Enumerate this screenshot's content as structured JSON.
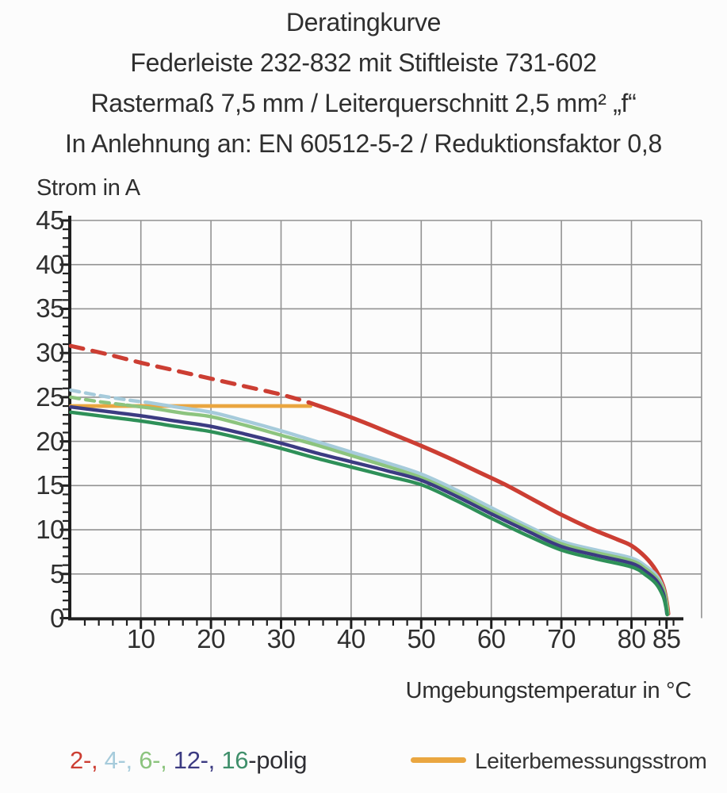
{
  "title_block": {
    "line1": "Deratingkurve",
    "line2": "Federleiste 232-832 mit Stiftleiste 731-602",
    "line3": "Rastermaß 7,5 mm / Leiterquerschnitt 2,5 mm² „f“",
    "line4": "In Anlehnung an: EN 60512-5-2 / Reduktionsfaktor 0,8"
  },
  "chart_data": {
    "type": "line",
    "title": "Deratingkurve",
    "ylabel": "Strom in A",
    "xlabel": "Umgebungstemperatur in °C",
    "xlim": [
      0,
      90
    ],
    "ylim": [
      0,
      45
    ],
    "x_major_ticks": [
      10,
      20,
      30,
      40,
      50,
      60,
      70,
      80,
      85
    ],
    "x_minor_step": 2,
    "y_major_ticks": [
      0,
      5,
      10,
      15,
      20,
      25,
      30,
      35,
      40,
      45
    ],
    "y_minor_step": 1,
    "grid": {
      "x_step": 10,
      "y_step": 5,
      "color": "#929292",
      "width": 1.6
    },
    "axis_color": "#1f1f1f",
    "series": [
      {
        "name": "Leiterbemessungsstrom",
        "color": "#eaa640",
        "width": 4.8,
        "solid": [
          [
            0,
            24.0
          ],
          [
            34.2,
            24.0
          ]
        ]
      },
      {
        "name": "2-polig",
        "color": "#cc3e33",
        "width": 5.2,
        "dash_pattern": "16 12",
        "dashed": [
          [
            0,
            30.8
          ],
          [
            5,
            29.9
          ],
          [
            10,
            28.9
          ],
          [
            15,
            28.0
          ],
          [
            20,
            27.1
          ],
          [
            25,
            26.2
          ],
          [
            30,
            25.3
          ],
          [
            34,
            24.4
          ]
        ],
        "solid": [
          [
            34,
            24.4
          ],
          [
            38,
            23.3
          ],
          [
            42,
            22.1
          ],
          [
            46,
            20.8
          ],
          [
            50,
            19.5
          ],
          [
            54,
            18.1
          ],
          [
            58,
            16.6
          ],
          [
            62,
            15.1
          ],
          [
            66,
            13.4
          ],
          [
            70,
            11.7
          ],
          [
            74,
            10.2
          ],
          [
            78,
            8.9
          ],
          [
            80,
            8.2
          ],
          [
            82,
            6.9
          ],
          [
            83.5,
            5.4
          ],
          [
            84.5,
            3.7
          ],
          [
            84.9,
            2.4
          ],
          [
            85.15,
            1.2
          ],
          [
            85.25,
            0.5
          ]
        ]
      },
      {
        "name": "4-polig",
        "color": "#a6cbdb",
        "width": 4.4,
        "dash_pattern": "11 8",
        "dashed": [
          [
            0,
            25.8
          ],
          [
            4,
            25.2
          ],
          [
            8,
            24.7
          ],
          [
            11,
            24.4
          ]
        ],
        "solid": [
          [
            11,
            24.4
          ],
          [
            15,
            23.9
          ],
          [
            20,
            23.3
          ],
          [
            25,
            22.3
          ],
          [
            30,
            21.2
          ],
          [
            35,
            20.0
          ],
          [
            40,
            18.8
          ],
          [
            45,
            17.6
          ],
          [
            50,
            16.3
          ],
          [
            55,
            14.5
          ],
          [
            60,
            12.5
          ],
          [
            65,
            10.5
          ],
          [
            70,
            8.7
          ],
          [
            75,
            7.7
          ],
          [
            80,
            6.8
          ],
          [
            82,
            5.9
          ],
          [
            83.5,
            4.9
          ],
          [
            84.5,
            3.5
          ],
          [
            84.9,
            2.1
          ],
          [
            85.05,
            1.0
          ],
          [
            85.1,
            0.5
          ]
        ]
      },
      {
        "name": "6-polig",
        "color": "#8cc47e",
        "width": 4.4,
        "dash_pattern": "11 8",
        "dashed": [
          [
            0,
            25.0
          ],
          [
            4,
            24.5
          ],
          [
            8,
            24.1
          ]
        ],
        "solid": [
          [
            8,
            24.1
          ],
          [
            12,
            23.7
          ],
          [
            16,
            23.2
          ],
          [
            20,
            22.8
          ],
          [
            25,
            21.8
          ],
          [
            30,
            20.7
          ],
          [
            35,
            19.6
          ],
          [
            40,
            18.4
          ],
          [
            45,
            17.2
          ],
          [
            50,
            15.9
          ],
          [
            55,
            14.1
          ],
          [
            60,
            12.1
          ],
          [
            65,
            10.2
          ],
          [
            70,
            8.4
          ],
          [
            75,
            7.4
          ],
          [
            80,
            6.5
          ],
          [
            82,
            5.6
          ],
          [
            83.5,
            4.6
          ],
          [
            84.6,
            3.2
          ],
          [
            85,
            1.8
          ],
          [
            85.15,
            0.9
          ],
          [
            85.2,
            0.5
          ]
        ]
      },
      {
        "name": "12-polig",
        "color": "#3c3b82",
        "width": 4.4,
        "solid": [
          [
            0,
            23.9
          ],
          [
            5,
            23.4
          ],
          [
            10,
            22.9
          ],
          [
            15,
            22.3
          ],
          [
            20,
            21.7
          ],
          [
            25,
            20.8
          ],
          [
            30,
            19.8
          ],
          [
            35,
            18.7
          ],
          [
            40,
            17.7
          ],
          [
            45,
            16.7
          ],
          [
            50,
            15.6
          ],
          [
            55,
            13.8
          ],
          [
            60,
            11.8
          ],
          [
            65,
            9.9
          ],
          [
            70,
            8.1
          ],
          [
            75,
            7.1
          ],
          [
            80,
            6.2
          ],
          [
            82,
            5.3
          ],
          [
            83.5,
            4.3
          ],
          [
            84.5,
            2.9
          ],
          [
            84.85,
            1.6
          ],
          [
            85,
            0.8
          ],
          [
            85.05,
            0.5
          ]
        ]
      },
      {
        "name": "16-polig",
        "color": "#2e9058",
        "width": 4.4,
        "solid": [
          [
            0,
            23.3
          ],
          [
            5,
            22.8
          ],
          [
            10,
            22.3
          ],
          [
            15,
            21.7
          ],
          [
            20,
            21.1
          ],
          [
            25,
            20.2
          ],
          [
            30,
            19.2
          ],
          [
            35,
            18.1
          ],
          [
            40,
            17.1
          ],
          [
            45,
            16.1
          ],
          [
            50,
            15.1
          ],
          [
            55,
            13.3
          ],
          [
            60,
            11.3
          ],
          [
            65,
            9.4
          ],
          [
            70,
            7.7
          ],
          [
            75,
            6.7
          ],
          [
            80,
            5.8
          ],
          [
            82,
            4.9
          ],
          [
            83.5,
            3.9
          ],
          [
            84.5,
            2.5
          ],
          [
            84.9,
            1.3
          ],
          [
            85.05,
            0.7
          ],
          [
            85.1,
            0.4
          ]
        ]
      }
    ]
  },
  "legend": {
    "poles_items": [
      {
        "text": "2-, ",
        "color": "#cc3e33"
      },
      {
        "text": "4-, ",
        "color": "#a6cbdb"
      },
      {
        "text": "6-, ",
        "color": "#8cc47e"
      },
      {
        "text": "12-, ",
        "color": "#3c3b82"
      },
      {
        "text": "16",
        "color": "#3f8f6b"
      },
      {
        "text": "-polig",
        "color": "#2e2e33"
      }
    ],
    "line_label": "Leiterbemessungsstrom",
    "line_color": "#eaa640"
  }
}
